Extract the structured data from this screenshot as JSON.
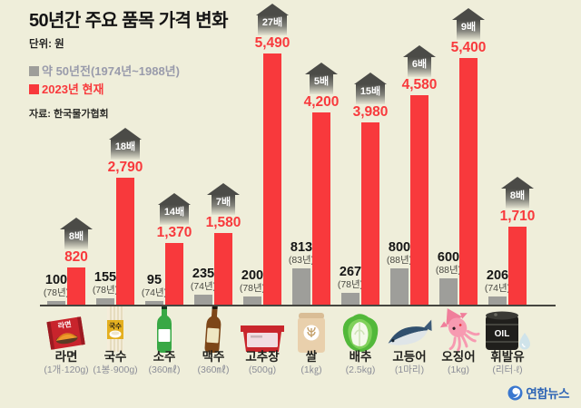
{
  "title": "50년간 주요 품목 가격 변화",
  "unit_label": "단위: 원",
  "legend": {
    "old_label": "약 50년전(1974년~1988년)",
    "new_label": "2023년 현재"
  },
  "source": "자료: 한국물가협회",
  "watermark": "연합뉴스",
  "colors": {
    "background": "#efeeda",
    "old_bar": "#9e9e9a",
    "new_bar": "#f8393c",
    "badge_dark": "#4b4b47",
    "old_legend_text": "#999bab",
    "watermark_blue": "#2c63b5"
  },
  "icon_text": {
    "ramyeon": "라면",
    "guksu": "국수",
    "oil": "OIL"
  },
  "chart_data": {
    "type": "bar",
    "title": "50년간 주요 품목 가격 변화",
    "unit": "원",
    "series": [
      {
        "name": "약 50년전(1974년~1988년)",
        "color": "#9e9e9a"
      },
      {
        "name": "2023년 현재",
        "color": "#f8393c"
      }
    ],
    "ylim": [
      0,
      5490
    ],
    "items": [
      {
        "name": "라면",
        "unit": "(1개·120g)",
        "icon": "ramyeon",
        "old": 100,
        "old_label": "100",
        "old_year": "(78년)",
        "new": 820,
        "new_label": "820",
        "multiplier": "8배"
      },
      {
        "name": "국수",
        "unit": "(1봉·900g)",
        "icon": "guksu",
        "old": 155,
        "old_label": "155",
        "old_year": "(78년)",
        "new": 2790,
        "new_label": "2,790",
        "multiplier": "18배"
      },
      {
        "name": "소주",
        "unit": "(360㎖)",
        "icon": "soju",
        "old": 95,
        "old_label": "95",
        "old_year": "(74년)",
        "new": 1370,
        "new_label": "1,370",
        "multiplier": "14배"
      },
      {
        "name": "맥주",
        "unit": "(360㎖)",
        "icon": "beer",
        "old": 235,
        "old_label": "235",
        "old_year": "(74년)",
        "new": 1580,
        "new_label": "1,580",
        "multiplier": "7배"
      },
      {
        "name": "고추장",
        "unit": "(500g)",
        "icon": "gochujang",
        "old": 200,
        "old_label": "200",
        "old_year": "(78년)",
        "new": 5490,
        "new_label": "5,490",
        "multiplier": "27배"
      },
      {
        "name": "쌀",
        "unit": "(1㎏)",
        "icon": "rice",
        "old": 813,
        "old_label": "813",
        "old_year": "(83년)",
        "new": 4200,
        "new_label": "4,200",
        "multiplier": "5배"
      },
      {
        "name": "배추",
        "unit": "(2.5kg)",
        "icon": "cabbage",
        "old": 267,
        "old_label": "267",
        "old_year": "(78년)",
        "new": 3980,
        "new_label": "3,980",
        "multiplier": "15배"
      },
      {
        "name": "고등어",
        "unit": "(1마리)",
        "icon": "mackerel",
        "old": 800,
        "old_label": "800",
        "old_year": "(88년)",
        "new": 4580,
        "new_label": "4,580",
        "multiplier": "6배"
      },
      {
        "name": "오징어",
        "unit": "(1kg)",
        "icon": "squid",
        "old": 600,
        "old_label": "600",
        "old_year": "(88년)",
        "new": 5400,
        "new_label": "5,400",
        "multiplier": "9배"
      },
      {
        "name": "휘발유",
        "unit": "(리터·ℓ)",
        "icon": "oil",
        "old": 206,
        "old_label": "206",
        "old_year": "(74년)",
        "new": 1710,
        "new_label": "1,710",
        "multiplier": "8배"
      }
    ]
  }
}
